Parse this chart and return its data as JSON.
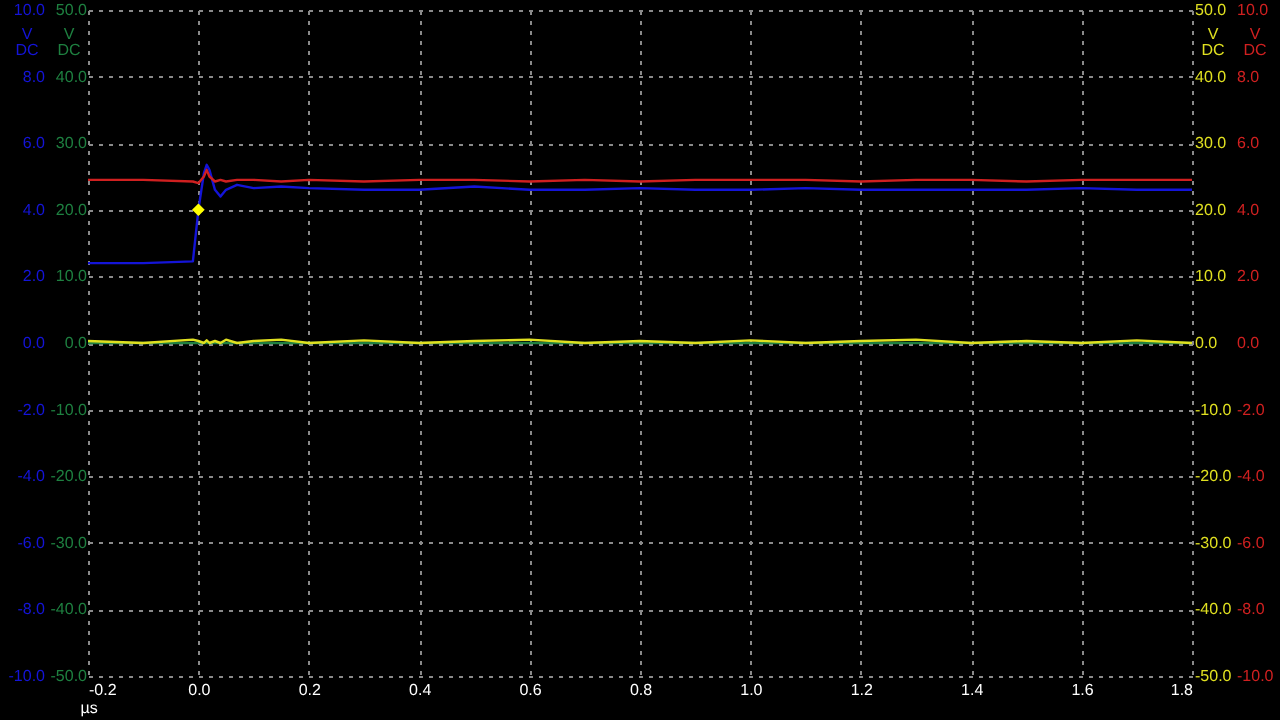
{
  "chart_data": {
    "type": "line",
    "xlabel": "µs",
    "ylabel": "V DC",
    "y2label": "V DC",
    "y3label": "V DC",
    "x": [
      -0.2,
      -0.1,
      -0.01,
      0,
      0.01,
      0.015,
      0.02,
      0.03,
      0.04,
      0.05,
      0.07,
      0.1,
      0.15,
      0.2,
      0.3,
      0.4,
      0.5,
      0.6,
      0.7,
      0.8,
      0.9,
      1.0,
      1.1,
      1.2,
      1.3,
      1.4,
      1.5,
      1.6,
      1.7,
      1.8
    ],
    "xlim": [
      -0.2,
      1.8
    ],
    "xticks": [
      {
        "value": -0.2,
        "label": "-0.2"
      },
      {
        "value": 0,
        "label": "0.0"
      },
      {
        "value": 0.2,
        "label": "0.2"
      },
      {
        "value": 0.4,
        "label": "0.4"
      },
      {
        "value": 0.6,
        "label": "0.6"
      },
      {
        "value": 0.8,
        "label": "0.8"
      },
      {
        "value": 1,
        "label": "1.0"
      },
      {
        "value": 1.2,
        "label": "1.2"
      },
      {
        "value": 1.4,
        "label": "1.4"
      },
      {
        "value": 1.6,
        "label": "1.6"
      },
      {
        "value": 1.8,
        "label": "1.8"
      }
    ],
    "ylim": [
      -10,
      10
    ],
    "yticks": [
      {
        "value": -10,
        "label": "-10.0"
      },
      {
        "value": -8,
        "label": "-8.0"
      },
      {
        "value": -6,
        "label": "-6.0"
      },
      {
        "value": -4,
        "label": "-4.0"
      },
      {
        "value": -2,
        "label": "-2.0"
      },
      {
        "value": 0,
        "label": "0.0"
      },
      {
        "value": 2,
        "label": "2.0"
      },
      {
        "value": 4,
        "label": "4.0"
      },
      {
        "value": 6,
        "label": "6.0"
      },
      {
        "value": 8,
        "label": "8.0"
      },
      {
        "value": 10,
        "label": "10.0"
      }
    ],
    "y2lim": [
      -10,
      10
    ],
    "y2ticks": [
      {
        "value": -10,
        "label": "-10.0"
      },
      {
        "value": -8,
        "label": "-8.0"
      },
      {
        "value": -6,
        "label": "-6.0"
      },
      {
        "value": -4,
        "label": "-4.0"
      },
      {
        "value": -2,
        "label": "-2.0"
      },
      {
        "value": 0,
        "label": "0.0"
      },
      {
        "value": 2,
        "label": "2.0"
      },
      {
        "value": 4,
        "label": "4.0"
      },
      {
        "value": 6,
        "label": "6.0"
      },
      {
        "value": 8,
        "label": "8.0"
      },
      {
        "value": 10,
        "label": "10.0"
      }
    ],
    "y3lim": [
      -50,
      50
    ],
    "y3ticks": [
      {
        "value": -50,
        "label": "-50.0"
      },
      {
        "value": -40,
        "label": "-40.0"
      },
      {
        "value": -30,
        "label": "-30.0"
      },
      {
        "value": -20,
        "label": "-20.0"
      },
      {
        "value": -10,
        "label": "-10.0"
      },
      {
        "value": 0,
        "label": "0.0"
      },
      {
        "value": 10,
        "label": "10.0"
      },
      {
        "value": 20,
        "label": "20.0"
      },
      {
        "value": 30,
        "label": "30.0"
      },
      {
        "value": 40,
        "label": "40.0"
      },
      {
        "value": 50,
        "label": "50.0"
      }
    ],
    "grid": true,
    "marker": "none",
    "line_style": "solid",
    "series": [
      {
        "color": "#1414d8",
        "values": [
          2.4,
          2.4,
          2.45,
          4.0,
          5.1,
          5.35,
          5.2,
          4.6,
          4.4,
          4.6,
          4.75,
          4.65,
          4.7,
          4.65,
          4.6,
          4.6,
          4.7,
          4.6,
          4.6,
          4.65,
          4.6,
          4.6,
          4.65,
          4.6,
          4.6,
          4.6,
          4.6,
          4.65,
          4.6,
          4.6
        ]
      },
      {
        "color": "#d02020",
        "axis": "y2",
        "values": [
          4.9,
          4.9,
          4.85,
          4.8,
          5.0,
          5.2,
          5.0,
          4.85,
          4.9,
          4.85,
          4.9,
          4.9,
          4.85,
          4.9,
          4.85,
          4.9,
          4.9,
          4.85,
          4.9,
          4.85,
          4.9,
          4.9,
          4.9,
          4.85,
          4.9,
          4.9,
          4.85,
          4.9,
          4.9,
          4.9
        ]
      },
      {
        "color": "#1e8040",
        "axis": "y3",
        "values": [
          0,
          0,
          0,
          0,
          0,
          0,
          0,
          0,
          0,
          0,
          0,
          0,
          0,
          0,
          0,
          0,
          0,
          0,
          0,
          0,
          0,
          0,
          0,
          0,
          0,
          0,
          0,
          0,
          0,
          0
        ]
      },
      {
        "color": "#e0e020",
        "axis": "y3",
        "values": [
          0.3,
          0,
          0.5,
          0.3,
          0,
          0.4,
          0,
          0.3,
          0,
          0.5,
          0,
          0.3,
          0.5,
          0,
          0.4,
          0,
          0.3,
          0.5,
          0,
          0.3,
          0,
          0.4,
          0,
          0.3,
          0.5,
          0,
          0.3,
          0,
          0.4,
          0
        ]
      },
      {
        "type": "scatter",
        "marker": "diamond",
        "color": "#ffff00",
        "x": [
          0
        ],
        "values": [
          4.0
        ]
      }
    ]
  }
}
